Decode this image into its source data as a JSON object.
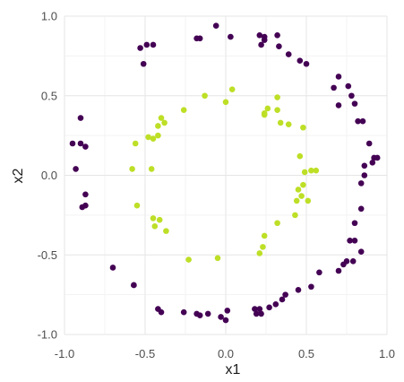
{
  "chart_data": {
    "type": "scatter",
    "title": "",
    "xlabel": "x1",
    "ylabel": "x2",
    "xlim": [
      -1.0,
      1.0
    ],
    "ylim": [
      -1.0,
      1.0
    ],
    "x_ticks": [
      -1.0,
      -0.5,
      0.0,
      0.5,
      1.0
    ],
    "y_ticks": [
      -1.0,
      -0.5,
      0.0,
      0.5,
      1.0
    ],
    "x_tick_labels": [
      "-1.0",
      "-0.5",
      "0.0",
      "0.5",
      "1.0"
    ],
    "y_tick_labels": [
      "-1.0",
      "-0.5",
      "0.0",
      "0.5",
      "1.0"
    ],
    "grid": true,
    "legend": "none",
    "series": [
      {
        "color": "#440154",
        "points": [
          [
            -0.06,
            0.94
          ],
          [
            -0.18,
            0.86
          ],
          [
            -0.16,
            0.86
          ],
          [
            0.03,
            0.87
          ],
          [
            -0.49,
            0.82
          ],
          [
            -0.45,
            0.82
          ],
          [
            -0.53,
            0.8
          ],
          [
            -0.51,
            0.7
          ],
          [
            0.21,
            0.88
          ],
          [
            0.24,
            0.87
          ],
          [
            0.24,
            0.85
          ],
          [
            0.22,
            0.82
          ],
          [
            0.32,
            0.88
          ],
          [
            0.33,
            0.81
          ],
          [
            0.39,
            0.76
          ],
          [
            0.46,
            0.72
          ],
          [
            0.5,
            0.7
          ],
          [
            0.7,
            0.62
          ],
          [
            0.67,
            0.55
          ],
          [
            0.76,
            0.56
          ],
          [
            0.78,
            0.5
          ],
          [
            0.8,
            0.45
          ],
          [
            0.7,
            0.44
          ],
          [
            0.82,
            0.34
          ],
          [
            0.85,
            0.34
          ],
          [
            0.89,
            0.2
          ],
          [
            0.94,
            0.11
          ],
          [
            0.92,
            0.11
          ],
          [
            0.91,
            0.08
          ],
          [
            0.86,
            0.06
          ],
          [
            0.86,
            0.0
          ],
          [
            0.84,
            -0.05
          ],
          [
            0.84,
            -0.21
          ],
          [
            0.8,
            -0.3
          ],
          [
            0.77,
            -0.41
          ],
          [
            0.8,
            -0.41
          ],
          [
            0.84,
            -0.48
          ],
          [
            0.75,
            -0.54
          ],
          [
            0.79,
            -0.54
          ],
          [
            0.73,
            -0.56
          ],
          [
            0.7,
            -0.6
          ],
          [
            0.58,
            -0.61
          ],
          [
            0.53,
            -0.7
          ],
          [
            0.45,
            -0.72
          ],
          [
            0.37,
            -0.75
          ],
          [
            0.35,
            -0.78
          ],
          [
            0.31,
            -0.81
          ],
          [
            0.27,
            -0.83
          ],
          [
            0.21,
            -0.84
          ],
          [
            0.18,
            -0.84
          ],
          [
            0.19,
            -0.87
          ],
          [
            0.22,
            -0.87
          ],
          [
            0.01,
            -0.85
          ],
          [
            0.0,
            -0.91
          ],
          [
            -0.03,
            -0.89
          ],
          [
            -0.11,
            -0.87
          ],
          [
            -0.16,
            -0.88
          ],
          [
            -0.18,
            -0.87
          ],
          [
            -0.26,
            -0.86
          ],
          [
            -0.42,
            -0.84
          ],
          [
            -0.4,
            -0.86
          ],
          [
            -0.57,
            -0.69
          ],
          [
            -0.57,
            -0.69
          ],
          [
            -0.7,
            -0.58
          ],
          [
            -0.89,
            -0.2
          ],
          [
            -0.87,
            -0.19
          ],
          [
            -0.87,
            -0.12
          ],
          [
            -0.93,
            0.04
          ],
          [
            -0.87,
            0.18
          ],
          [
            -0.95,
            0.2
          ],
          [
            -0.9,
            0.2
          ],
          [
            -0.9,
            0.36
          ]
        ]
      },
      {
        "color": "#bddf26",
        "points": [
          [
            0.04,
            0.54
          ],
          [
            -0.13,
            0.5
          ],
          [
            0.0,
            0.46
          ],
          [
            -0.26,
            0.41
          ],
          [
            0.26,
            0.42
          ],
          [
            0.32,
            0.49
          ],
          [
            0.32,
            0.41
          ],
          [
            0.24,
            0.39
          ],
          [
            0.24,
            0.38
          ],
          [
            0.34,
            0.33
          ],
          [
            0.39,
            0.32
          ],
          [
            -0.4,
            0.36
          ],
          [
            -0.42,
            0.31
          ],
          [
            -0.38,
            0.33
          ],
          [
            -0.45,
            0.23
          ],
          [
            -0.48,
            0.24
          ],
          [
            -0.42,
            0.25
          ],
          [
            -0.56,
            0.2
          ],
          [
            0.48,
            0.3
          ],
          [
            0.46,
            0.12
          ],
          [
            0.49,
            0.02
          ],
          [
            0.53,
            0.03
          ],
          [
            0.56,
            0.03
          ],
          [
            -0.46,
            0.04
          ],
          [
            -0.58,
            0.04
          ],
          [
            0.48,
            -0.06
          ],
          [
            0.45,
            -0.09
          ],
          [
            0.47,
            -0.13
          ],
          [
            0.51,
            -0.16
          ],
          [
            0.44,
            -0.16
          ],
          [
            0.43,
            -0.25
          ],
          [
            0.32,
            -0.3
          ],
          [
            -0.55,
            -0.19
          ],
          [
            -0.45,
            -0.27
          ],
          [
            -0.41,
            -0.28
          ],
          [
            -0.44,
            -0.32
          ],
          [
            -0.37,
            -0.35
          ],
          [
            0.24,
            -0.38
          ],
          [
            0.23,
            -0.45
          ],
          [
            0.21,
            -0.49
          ],
          [
            -0.23,
            -0.53
          ],
          [
            -0.05,
            -0.52
          ]
        ]
      }
    ]
  }
}
